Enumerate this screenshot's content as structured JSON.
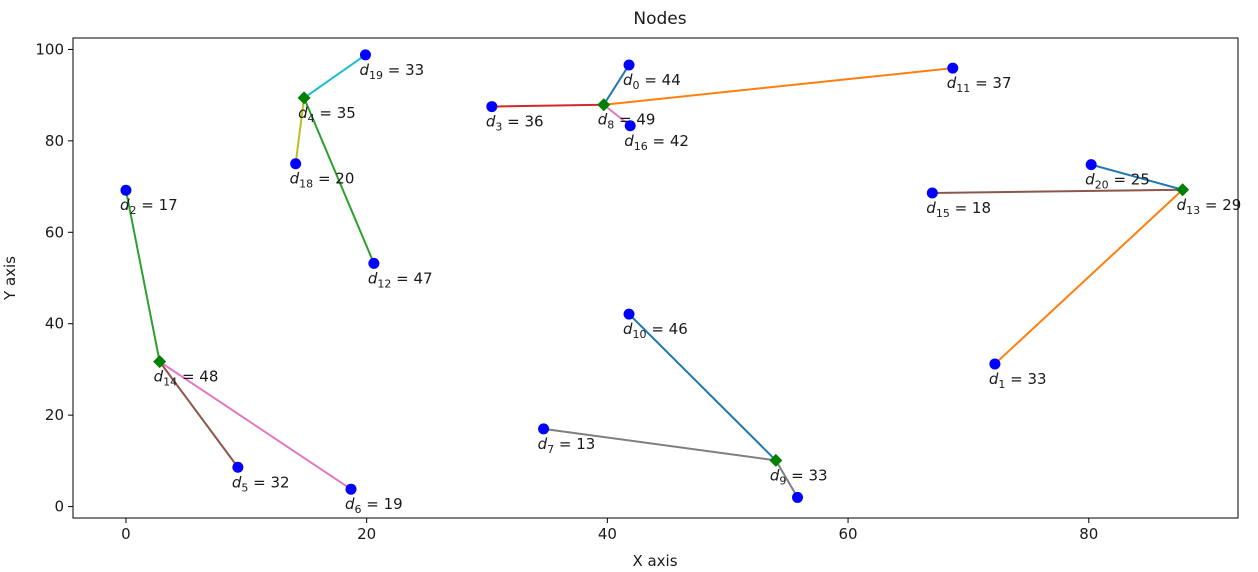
{
  "chart_data": {
    "type": "scatter",
    "title": "Nodes",
    "xlabel": "X axis",
    "ylabel": "Y axis",
    "xlim": [
      -4.4,
      92.4
    ],
    "ylim": [
      -2.5,
      102.5
    ],
    "xticks": [
      0,
      20,
      40,
      60,
      80
    ],
    "yticks": [
      0,
      20,
      40,
      60,
      80,
      100
    ],
    "grid": false,
    "colors": {
      "node": "#0000ff",
      "hub": "#008000",
      "axis": "#000000"
    },
    "nodes": [
      {
        "id": 0,
        "x": 41.8,
        "y": 96.6,
        "d": 44,
        "hub": false
      },
      {
        "id": 1,
        "x": 72.2,
        "y": 31.2,
        "d": 33,
        "hub": false
      },
      {
        "id": 2,
        "x": 0.0,
        "y": 69.2,
        "d": 17,
        "hub": false
      },
      {
        "id": 3,
        "x": 30.4,
        "y": 87.5,
        "d": 36,
        "hub": false
      },
      {
        "id": 4,
        "x": 14.8,
        "y": 89.4,
        "d": 35,
        "hub": true
      },
      {
        "id": 5,
        "x": 9.3,
        "y": 8.6,
        "d": 32,
        "hub": false
      },
      {
        "id": 6,
        "x": 18.7,
        "y": 3.8,
        "d": 19,
        "hub": false
      },
      {
        "id": 7,
        "x": 34.7,
        "y": 17.0,
        "d": 13,
        "hub": false
      },
      {
        "id": 8,
        "x": 39.7,
        "y": 87.9,
        "d": 49,
        "hub": true
      },
      {
        "id": 9,
        "x": 54.0,
        "y": 10.1,
        "d": 33,
        "hub": true
      },
      {
        "id": 10,
        "x": 41.8,
        "y": 42.1,
        "d": 46,
        "hub": false
      },
      {
        "id": 11,
        "x": 68.7,
        "y": 95.9,
        "d": 37,
        "hub": false
      },
      {
        "id": 12,
        "x": 20.6,
        "y": 53.2,
        "d": 47,
        "hub": false
      },
      {
        "id": 13,
        "x": 87.8,
        "y": 69.3,
        "d": 29,
        "hub": true
      },
      {
        "id": 14,
        "x": 2.8,
        "y": 31.7,
        "d": 48,
        "hub": true
      },
      {
        "id": 15,
        "x": 67.0,
        "y": 68.6,
        "d": 18,
        "hub": false
      },
      {
        "id": 16,
        "x": 41.9,
        "y": 83.3,
        "d": 42,
        "hub": false
      },
      {
        "id": 18,
        "x": 14.1,
        "y": 75.0,
        "d": 20,
        "hub": false
      },
      {
        "id": 19,
        "x": 19.9,
        "y": 98.8,
        "d": 33,
        "hub": false
      },
      {
        "id": 20,
        "x": 80.2,
        "y": 74.8,
        "d": 25,
        "hub": false
      }
    ],
    "edges": [
      {
        "from": 8,
        "to": 0,
        "color": "#1f77b4"
      },
      {
        "from": 8,
        "to": 3,
        "color": "#d62728"
      },
      {
        "from": 8,
        "to": 16,
        "color": "#e377c2"
      },
      {
        "from": 8,
        "to": 11,
        "color": "#ff7f0e"
      },
      {
        "from": 4,
        "to": 19,
        "color": "#17becf"
      },
      {
        "from": 4,
        "to": 18,
        "color": "#bcbd22"
      },
      {
        "from": 4,
        "to": 12,
        "color": "#2ca02c"
      },
      {
        "from": 14,
        "to": 2,
        "color": "#2ca02c"
      },
      {
        "from": 14,
        "to": 5,
        "color": "#8c564b"
      },
      {
        "from": 14,
        "to": 6,
        "color": "#e377c2"
      },
      {
        "from": 9,
        "to": 10,
        "color": "#1f77b4"
      },
      {
        "from": 9,
        "to": 7,
        "color": "#7f7f7f"
      },
      {
        "from": 9,
        "to": 6,
        "color": "#7f7f7f",
        "skip": true
      },
      {
        "from": 13,
        "to": 20,
        "color": "#1f77b4"
      },
      {
        "from": 13,
        "to": 15,
        "color": "#8c564b"
      },
      {
        "from": 13,
        "to": 1,
        "color": "#ff7f0e"
      }
    ],
    "extra_edges": [
      {
        "from": 9,
        "to_point": [
          55.8,
          2.0
        ],
        "color": "#7f7f7f"
      }
    ],
    "extra_points": [
      {
        "x": 55.8,
        "y": 2.0
      }
    ]
  }
}
